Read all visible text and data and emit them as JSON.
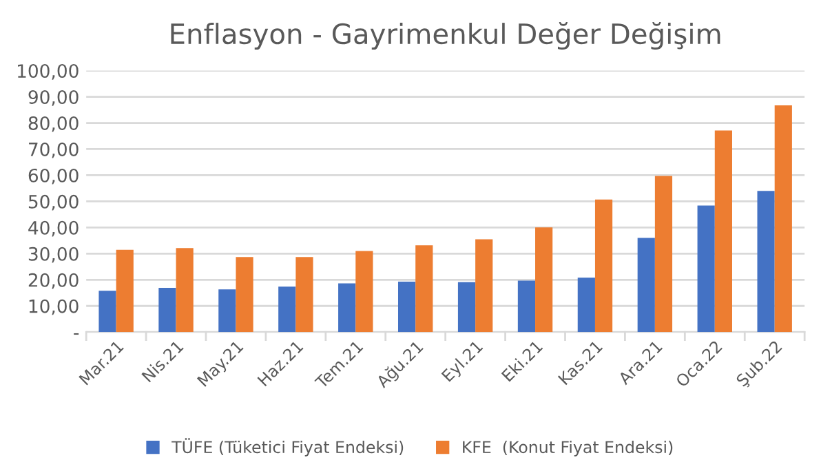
{
  "chart_data": {
    "type": "bar",
    "title": "Enflasyon - Gayrimenkul Değer Değişim",
    "categories": [
      "Mar.21",
      "Nis.21",
      "May.21",
      "Haz.21",
      "Tem.21",
      "Ağu.21",
      "Eyl.21",
      "Eki.21",
      "Kas.21",
      "Ara.21",
      "Oca.22",
      "Şub.22"
    ],
    "series": [
      {
        "name": "TÜFE (Tüketici Fiyat Endeksi)",
        "color": "#4472c4",
        "values": [
          15.8,
          16.9,
          16.3,
          17.4,
          18.6,
          19.3,
          19.1,
          19.7,
          20.8,
          36.0,
          48.4,
          54.0
        ]
      },
      {
        "name": "KFE  (Konut Fiyat Endeksi)",
        "color": "#ed7d31",
        "values": [
          31.5,
          32.1,
          28.7,
          28.7,
          31.0,
          33.2,
          35.5,
          40.0,
          50.7,
          59.7,
          77.1,
          86.7
        ]
      }
    ],
    "ylim": [
      0,
      100
    ],
    "yticks": [
      {
        "value": 0,
        "label": "-"
      },
      {
        "value": 10,
        "label": "10,00"
      },
      {
        "value": 20,
        "label": "20,00"
      },
      {
        "value": 30,
        "label": "30,00"
      },
      {
        "value": 40,
        "label": "40,00"
      },
      {
        "value": 50,
        "label": "50,00"
      },
      {
        "value": 60,
        "label": "60,00"
      },
      {
        "value": 70,
        "label": "70,00"
      },
      {
        "value": 80,
        "label": "80,00"
      },
      {
        "value": 90,
        "label": "90,00"
      },
      {
        "value": 100,
        "label": "100,00"
      }
    ],
    "grid": "y",
    "legend": "bottom"
  }
}
